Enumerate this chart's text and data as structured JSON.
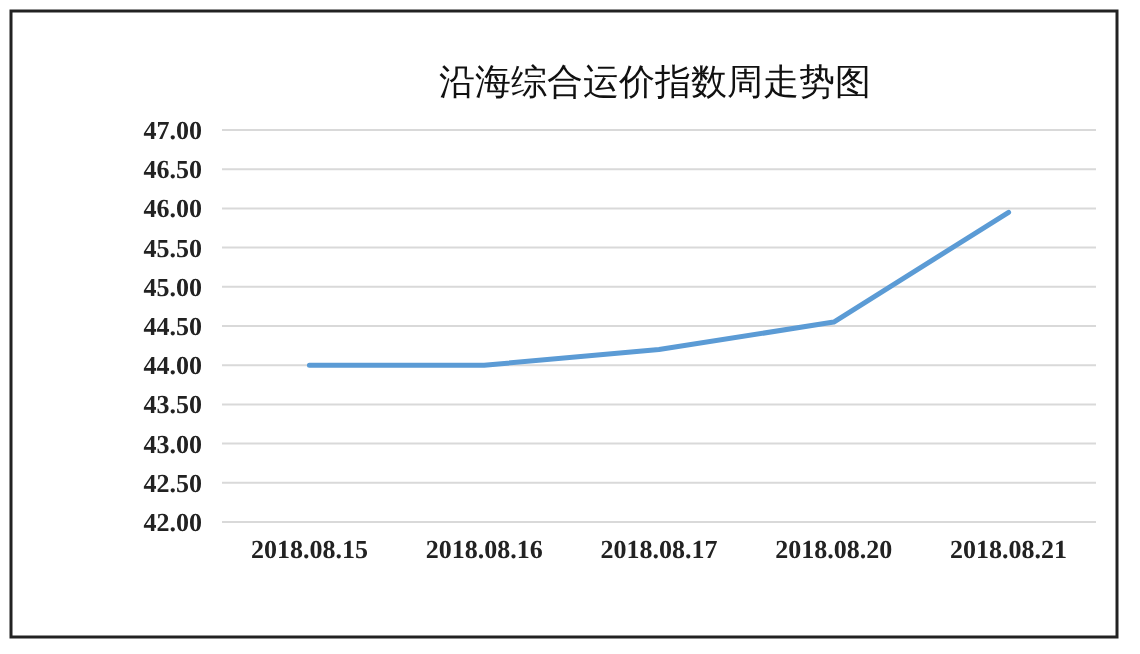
{
  "chart_data": {
    "type": "line",
    "title": "沿海综合运价指数周走势图",
    "categories": [
      "2018.08.15",
      "2018.08.16",
      "2018.08.17",
      "2018.08.20",
      "2018.08.21"
    ],
    "series": [
      {
        "color": "#5b9bd5",
        "values": [
          44.0,
          44.0,
          44.2,
          44.55,
          45.95
        ]
      }
    ],
    "ylim": [
      42,
      47
    ],
    "yticks": [
      {
        "value": 42,
        "label": "42.00"
      },
      {
        "value": 42.5,
        "label": "42.50"
      },
      {
        "value": 43,
        "label": "43.00"
      },
      {
        "value": 43.5,
        "label": "43.50"
      },
      {
        "value": 44,
        "label": "44.00"
      },
      {
        "value": 44.5,
        "label": "44.50"
      },
      {
        "value": 45,
        "label": "45.00"
      },
      {
        "value": 45.5,
        "label": "45.50"
      },
      {
        "value": 46,
        "label": "46.00"
      },
      {
        "value": 46.5,
        "label": "46.50"
      },
      {
        "value": 47,
        "label": "47.00"
      }
    ],
    "grid": "y",
    "marker": "none",
    "line_style": "solid"
  }
}
